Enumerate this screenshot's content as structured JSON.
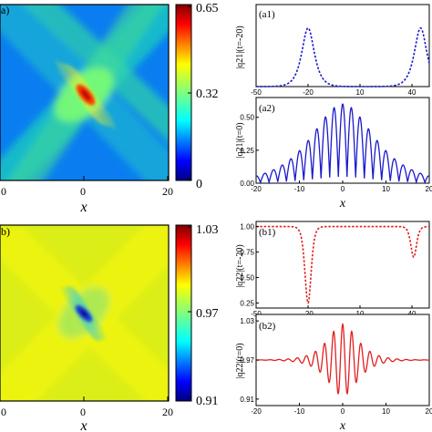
{
  "colors": {
    "blue_curve": "#1a1acc",
    "red_curve": "#e02020",
    "colormap": [
      "#00007f",
      "#0000ff",
      "#007fff",
      "#00ffff",
      "#7fff7f",
      "#ffff00",
      "#ff7f00",
      "#ff0000",
      "#7f0000"
    ]
  },
  "chart_data": [
    {
      "id": "a",
      "type": "heatmap",
      "panel_label": "a)",
      "xlabel": "x",
      "x_ticks": [
        "0",
        "0",
        "20"
      ],
      "colorbar_ticks": [
        "0.65",
        "0.32",
        "0"
      ],
      "colorbar_range": [
        0,
        0.65
      ],
      "description_values": {
        "peak_x": 0,
        "background_level": 0.22
      }
    },
    {
      "id": "a1",
      "type": "line",
      "panel_label": "(a1)",
      "ylabel": "|q21|(t=-20)",
      "style": "dashed",
      "color": "#1a1acc",
      "xlim": [
        -50,
        50
      ],
      "ylim": [
        0,
        0.42
      ],
      "x_ticks": [
        "-50",
        "-20",
        "10",
        "40"
      ],
      "series": [
        {
          "peaks_at_x": [
            -20,
            45
          ],
          "peak_value": 0.3
        }
      ]
    },
    {
      "id": "a2",
      "type": "line",
      "panel_label": "(a2)",
      "ylabel": "|q21|(t=0)",
      "style": "solid",
      "color": "#1a1acc",
      "xlim": [
        -20,
        20
      ],
      "ylim": [
        0,
        0.65
      ],
      "xlabel": "x",
      "x_ticks": [
        "-20",
        "-10",
        "0",
        "10",
        "20"
      ],
      "y_ticks": [
        "0.00",
        "0.25",
        "0.50"
      ],
      "series": [
        {
          "envelope_peak": 0.6,
          "oscillation_period": 2.0
        }
      ]
    },
    {
      "id": "b",
      "type": "heatmap",
      "panel_label": "b)",
      "xlabel": "x",
      "x_ticks": [
        "0",
        "0",
        "20"
      ],
      "colorbar_ticks": [
        "1.03",
        "0.97",
        "0.91"
      ],
      "colorbar_range": [
        0.91,
        1.03
      ],
      "description_values": {
        "background_level": 0.99
      }
    },
    {
      "id": "b1",
      "type": "line",
      "panel_label": "(b1)",
      "ylabel": "|q22|(t=-20)",
      "style": "dashed",
      "color": "#e02020",
      "xlim": [
        -50,
        50
      ],
      "ylim": [
        0.2,
        1.05
      ],
      "x_ticks": [
        "-50",
        "-20",
        "10",
        "40"
      ],
      "y_ticks": [
        "1.00",
        "0.75",
        "0.50",
        "0.25"
      ],
      "series": [
        {
          "dips_at_x": [
            -20,
            41
          ],
          "dip_min": [
            0.25,
            0.7
          ]
        }
      ]
    },
    {
      "id": "b2",
      "type": "line",
      "panel_label": "(b2)",
      "ylabel": "|q22|(t=0)",
      "style": "solid",
      "color": "#e02020",
      "xlim": [
        -20,
        20
      ],
      "ylim": [
        0.9,
        1.04
      ],
      "xlabel": "x",
      "x_ticks": [
        "-20",
        "-10",
        "0",
        "10",
        "20"
      ],
      "y_ticks": [
        "1.03",
        "0.97",
        "0.91"
      ],
      "series": [
        {
          "background": 0.97,
          "oscillation_amplitude": 0.055
        }
      ]
    }
  ]
}
